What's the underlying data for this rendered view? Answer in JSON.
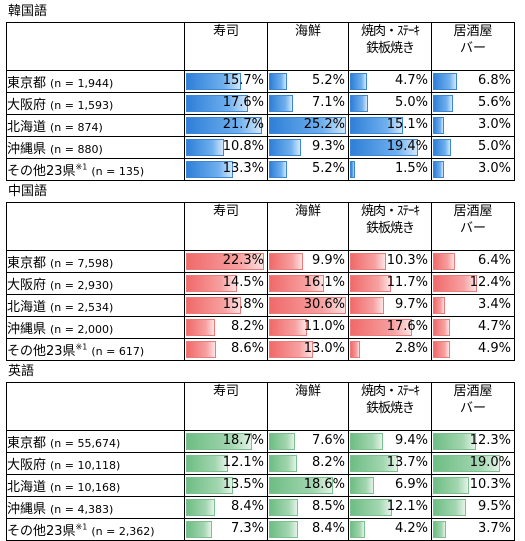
{
  "columns": [
    "寿司",
    "海鮮",
    "焼肉・ｽﾃｰｷ\n鉄板焼き",
    "居酒屋\nバー"
  ],
  "sections": [
    {
      "title": "韓国語",
      "color": "blue",
      "rows": [
        {
          "name": "東京都",
          "sup": "",
          "n": "(n = 1,944)",
          "values": [
            15.7,
            5.2,
            4.7,
            6.8
          ],
          "labels": [
            "15.7%",
            "5.2%",
            "4.7%",
            "6.8%"
          ]
        },
        {
          "name": "大阪府",
          "sup": "",
          "n": "(n = 1,593)",
          "values": [
            17.6,
            7.1,
            5.0,
            5.6
          ],
          "labels": [
            "17.6%",
            "7.1%",
            "5.0%",
            "5.6%"
          ]
        },
        {
          "name": "北海道",
          "sup": "",
          "n": "(n = 874)",
          "values": [
            21.7,
            25.2,
            15.1,
            3.0
          ],
          "labels": [
            "21.7%",
            "25.2%",
            "15.1%",
            "3.0%"
          ]
        },
        {
          "name": "沖縄県",
          "sup": "",
          "n": "(n = 880)",
          "values": [
            10.8,
            9.3,
            19.4,
            5.0
          ],
          "labels": [
            "10.8%",
            "9.3%",
            "19.4%",
            "5.0%"
          ]
        },
        {
          "name": "その他23県",
          "sup": "※1",
          "n": "(n = 135)",
          "values": [
            13.3,
            5.2,
            1.5,
            3.0
          ],
          "labels": [
            "13.3%",
            "5.2%",
            "1.5%",
            "3.0%"
          ]
        }
      ]
    },
    {
      "title": "中国語",
      "color": "red",
      "rows": [
        {
          "name": "東京都",
          "sup": "",
          "n": "(n = 7,598)",
          "values": [
            22.3,
            9.9,
            10.3,
            6.4
          ],
          "labels": [
            "22.3%",
            "9.9%",
            "10.3%",
            "6.4%"
          ]
        },
        {
          "name": "大阪府",
          "sup": "",
          "n": "(n = 2,930)",
          "values": [
            14.5,
            16.1,
            11.7,
            12.4
          ],
          "labels": [
            "14.5%",
            "16.1%",
            "11.7%",
            "12.4%"
          ]
        },
        {
          "name": "北海道",
          "sup": "",
          "n": "(n = 2,534)",
          "values": [
            15.8,
            30.6,
            9.7,
            3.4
          ],
          "labels": [
            "15.8%",
            "30.6%",
            "9.7%",
            "3.4%"
          ]
        },
        {
          "name": "沖縄県",
          "sup": "",
          "n": "(n = 2,000)",
          "values": [
            8.2,
            11.0,
            17.6,
            4.7
          ],
          "labels": [
            "8.2%",
            "11.0%",
            "17.6%",
            "4.7%"
          ]
        },
        {
          "name": "その他23県",
          "sup": "※1",
          "n": "(n = 617)",
          "values": [
            8.6,
            13.0,
            2.8,
            4.9
          ],
          "labels": [
            "8.6%",
            "13.0%",
            "2.8%",
            "4.9%"
          ]
        }
      ]
    },
    {
      "title": "英語",
      "color": "green",
      "rows": [
        {
          "name": "東京都",
          "sup": "",
          "n": "(n = 55,674)",
          "values": [
            18.7,
            7.6,
            9.4,
            12.3
          ],
          "labels": [
            "18.7%",
            "7.6%",
            "9.4%",
            "12.3%"
          ]
        },
        {
          "name": "大阪府",
          "sup": "",
          "n": "(n = 10,118)",
          "values": [
            12.1,
            8.2,
            13.7,
            19.0
          ],
          "labels": [
            "12.1%",
            "8.2%",
            "13.7%",
            "19.0%"
          ]
        },
        {
          "name": "北海道",
          "sup": "",
          "n": "(n = 10,168)",
          "values": [
            13.5,
            18.6,
            6.9,
            10.3
          ],
          "labels": [
            "13.5%",
            "18.6%",
            "6.9%",
            "10.3%"
          ]
        },
        {
          "name": "沖縄県",
          "sup": "",
          "n": "(n = 4,383)",
          "values": [
            8.4,
            8.5,
            12.1,
            9.5
          ],
          "labels": [
            "8.4%",
            "8.5%",
            "12.1%",
            "9.5%"
          ]
        },
        {
          "name": "その他23県",
          "sup": "※1",
          "n": "(n = 2,362)",
          "values": [
            7.3,
            8.4,
            4.2,
            3.7
          ],
          "labels": [
            "7.3%",
            "8.4%",
            "4.2%",
            "3.7%"
          ]
        }
      ]
    }
  ]
}
